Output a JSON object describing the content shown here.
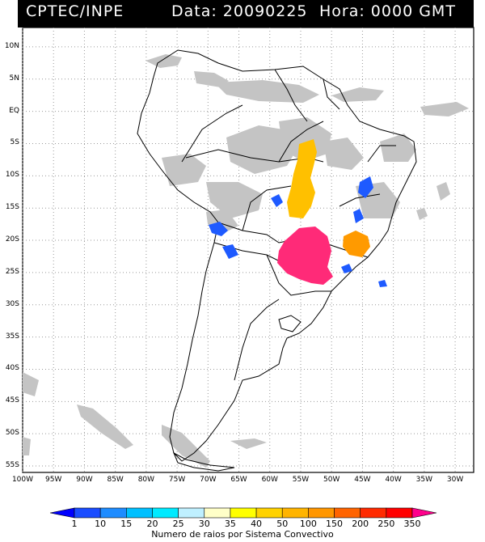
{
  "header": {
    "source": "CPTEC/INPE",
    "date_text": "Data: 20090225",
    "hour_text": "Hora: 0000 GMT"
  },
  "axes": {
    "lat_labels": [
      "10N",
      "5N",
      "EQ",
      "5S",
      "10S",
      "15S",
      "20S",
      "25S",
      "30S",
      "35S",
      "40S",
      "45S",
      "50S",
      "55S"
    ],
    "lat_values": [
      10,
      5,
      0,
      -5,
      -10,
      -15,
      -20,
      -25,
      -30,
      -35,
      -40,
      -45,
      -50,
      -55
    ],
    "lon_labels": [
      "100W",
      "95W",
      "90W",
      "85W",
      "80W",
      "75W",
      "70W",
      "65W",
      "60W",
      "55W",
      "50W",
      "45W",
      "40W",
      "35W",
      "30W"
    ],
    "lon_values": [
      -100,
      -95,
      -90,
      -85,
      -80,
      -75,
      -70,
      -65,
      -60,
      -55,
      -50,
      -45,
      -40,
      -35,
      -30
    ],
    "lat_range": [
      -56,
      13
    ],
    "lon_range": [
      -100,
      -27
    ],
    "grid": true
  },
  "colorbar": {
    "labels": [
      "1",
      "10",
      "15",
      "20",
      "25",
      "30",
      "35",
      "40",
      "50",
      "100",
      "150",
      "200",
      "250",
      "350"
    ],
    "colors": [
      "#0000ff",
      "#1a4cff",
      "#1e8cff",
      "#00c0ff",
      "#00eaff",
      "#bff0ff",
      "#ffffc8",
      "#ffff00",
      "#ffd200",
      "#ffb400",
      "#ff9600",
      "#ff6400",
      "#ff2a00",
      "#ff0000",
      "#ff008c"
    ],
    "title": "Numero de raios por Sistema Convectivo"
  },
  "legend_colors": {
    "cloud": "#bdbdbd",
    "blue": "#1e5aff",
    "orange": "#ffb400",
    "magenta": "#ff2a78",
    "orange_dark": "#ff9600"
  }
}
